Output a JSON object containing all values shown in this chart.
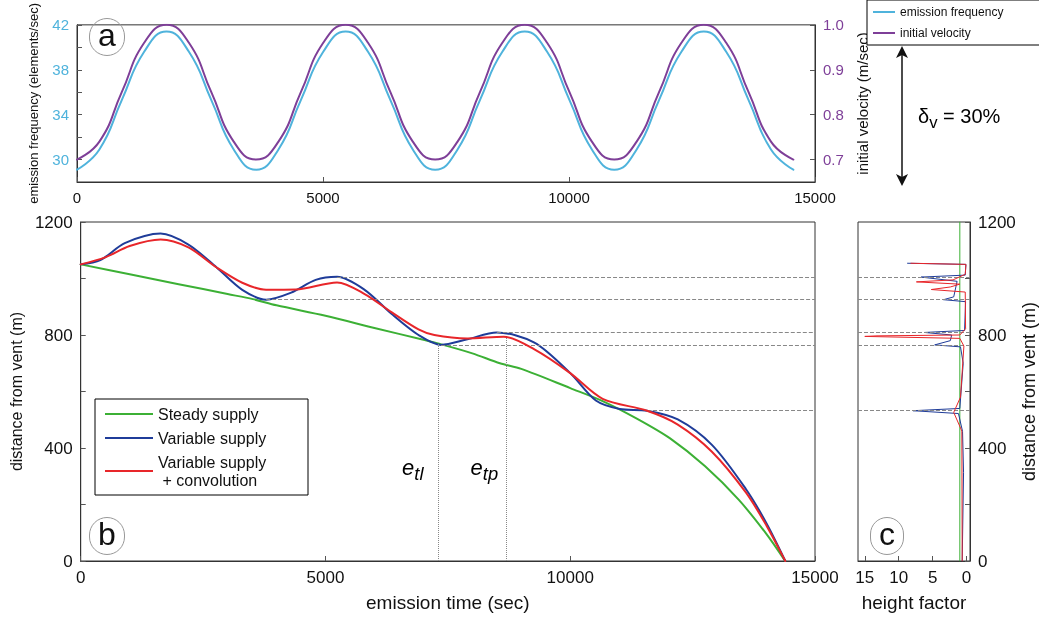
{
  "chart_data": [
    {
      "type": "line",
      "ylabel": "emission frequency (elements/sec)",
      "y2label": "initial velocity (m/sec)",
      "annotations": [
        "a",
        "δ$_{v}$ = 30%"
      ],
      "x": [
        0,
        455,
        910,
        1365,
        1820,
        2275,
        2730,
        3185,
        3640,
        4095,
        4550,
        5005,
        5460,
        5915,
        6370,
        6825,
        7280,
        7735,
        8190,
        8645,
        9100,
        9555,
        10010,
        10465,
        10920,
        11375,
        11830,
        12285,
        12740,
        13195,
        13650,
        14105,
        14560
      ],
      "series": [
        {
          "name": "emission frequency",
          "color": "#4fb3dc",
          "values": [
            29.1,
            30.9,
            35.3,
            39.6,
            41.4,
            39.6,
            35.3,
            30.9,
            29.1,
            30.9,
            35.3,
            39.6,
            41.4,
            39.6,
            35.3,
            30.9,
            29.1,
            30.9,
            35.3,
            39.6,
            41.4,
            39.6,
            35.3,
            30.9,
            29.1,
            30.9,
            35.3,
            39.6,
            41.4,
            39.6,
            35.3,
            30.9,
            29.1
          ]
        },
        {
          "name": "initial velocity",
          "color": "#7e3f98",
          "axis": "y2",
          "values": [
            0.7,
            0.74,
            0.85,
            0.96,
            1.0,
            0.96,
            0.85,
            0.74,
            0.7,
            0.74,
            0.85,
            0.96,
            1.0,
            0.96,
            0.85,
            0.74,
            0.7,
            0.74,
            0.85,
            0.96,
            1.0,
            0.96,
            0.85,
            0.74,
            0.7,
            0.74,
            0.85,
            0.96,
            1.0,
            0.96,
            0.85,
            0.74,
            0.7
          ]
        }
      ],
      "xlim": [
        0,
        15000
      ],
      "xticks": [
        0,
        5000,
        10000,
        15000
      ],
      "ylim": [
        28,
        42
      ],
      "yticks": [
        30,
        {
          "value": 32,
          "label": null
        },
        34,
        {
          "value": 36,
          "label": null
        },
        38,
        {
          "value": 40,
          "label": null
        },
        42
      ],
      "y2lim": [
        0.65,
        1.0
      ],
      "y2ticks": [
        0.7,
        0.8,
        0.9,
        {
          "value": 1.0,
          "label": "1.0"
        }
      ],
      "legend": "right"
    },
    {
      "type": "line",
      "xlabel": "emission time (sec)",
      "ylabel": "distance from vent (m)",
      "annotations": [
        "b"
      ],
      "series": [
        {
          "name": "Steady supply",
          "color": "#3cb035",
          "x": [
            0,
            1000,
            2000,
            3000,
            3516,
            4000,
            5000,
            6000,
            7000,
            7300,
            8000,
            8563,
            9000,
            10000,
            10650,
            11360,
            12040,
            12750,
            13440,
            14010,
            14390
          ],
          "values": [
            1050,
            1015,
            980,
            945,
            927,
            905,
            868,
            825,
            783,
            770,
            735,
            700,
            680,
            612,
            567,
            504,
            434,
            336,
            217,
            95,
            0
          ]
        },
        {
          "name": "Variable supply",
          "color": "#1f3c99",
          "x": [
            0,
            400,
            900,
            1631,
            2200,
            2777,
            3300,
            3787,
            4300,
            4800,
            5236,
            5800,
            6348,
            6900,
            7359,
            7900,
            8500,
            9268,
            10000,
            10523,
            11011,
            11569,
            12197,
            12894,
            13591,
            14010,
            14393
          ],
          "values": [
            1050,
            1065,
            1125,
            1159,
            1120,
            1039,
            960,
            925,
            950,
            995,
            1006,
            960,
            875,
            800,
            765,
            785,
            809,
            773,
            665,
            568,
            538,
            532,
            501,
            411,
            254,
            133,
            0
          ]
        },
        {
          "name": "Variable supply + convolution",
          "color": "#e8262a",
          "x": [
            0,
            500,
            1000,
            1631,
            2200,
            2777,
            3300,
            3787,
            4394,
            5236,
            5800,
            6348,
            6900,
            7224,
            7898,
            8639,
            9268,
            10000,
            10662,
            11569,
            12197,
            12894,
            13591,
            14010,
            14393
          ],
          "values": [
            1050,
            1075,
            1115,
            1138,
            1110,
            1039,
            985,
            960,
            961,
            986,
            945,
            881,
            820,
            800,
            788,
            794,
            749,
            665,
            574,
            532,
            483,
            387,
            242,
            125,
            0
          ]
        }
      ],
      "xlim": [
        0,
        15000
      ],
      "xticks": [
        0,
        5000,
        10000,
        15000
      ],
      "ylim": [
        0,
        1200
      ],
      "yticks": [
        0,
        {
          "value": 200,
          "label": null
        },
        400,
        {
          "value": 600,
          "label": null
        },
        800,
        {
          "value": 1000,
          "label": null
        },
        1200
      ],
      "ref_lines": [
        {
          "axis": "y",
          "value": 1006,
          "line_style": "dashed",
          "color": "#888888"
        },
        {
          "axis": "y",
          "value": 925,
          "line_style": "dashed",
          "color": "#888888"
        },
        {
          "axis": "y",
          "value": 809,
          "line_style": "dashed",
          "color": "#888888"
        },
        {
          "axis": "y",
          "value": 765,
          "line_style": "dashed",
          "color": "#888888"
        },
        {
          "axis": "y",
          "value": 532,
          "line_style": "dashed",
          "color": "#888888"
        },
        {
          "axis": "x",
          "value": 7300,
          "label": "e$_{tl}$",
          "line_style": "dotted",
          "color": "#888888"
        },
        {
          "axis": "x",
          "value": 8700,
          "label": "e$_{tp}$",
          "line_style": "dotted",
          "color": "#888888"
        }
      ],
      "legend": "bottom left"
    },
    {
      "type": "line",
      "xlabel": "height factor",
      "y2label": "distance from vent (m)",
      "annotations": [
        "c"
      ],
      "series": [
        {
          "color": "#3cb035",
          "axis": "y2",
          "x": [
            1,
            1
          ],
          "values": [
            0,
            1200
          ]
        },
        {
          "color": "#1f3c99",
          "axis": "y2",
          "x": [
            0.65,
            0.45,
            0.6,
            1.2,
            7.9,
            1.0,
            0.5,
            0.9,
            4.7,
            2.4,
            2.2,
            6.2,
            0.3,
            0.15,
            3.4,
            1.9,
            1.4,
            6.7,
            0.2,
            0.1,
            8.7
          ],
          "values": [
            0,
            314,
            459,
            522,
            532,
            540,
            700,
            758,
            765,
            780,
            800,
            809,
            816,
            918,
            925,
            935,
            990,
            1005,
            1012,
            1050,
            1054
          ]
        },
        {
          "color": "#e8262a",
          "axis": "y2",
          "x": [
            0.65,
            0.7,
            1.9,
            0.9,
            0.4,
            1.0,
            15,
            13.2,
            1.0,
            0.15,
            0.2,
            5.2,
            2.4,
            1.0,
            7.4,
            2.0,
            0.2,
            0.1,
            8.2
          ],
          "values": [
            0,
            460,
            526,
            580,
            761,
            788,
            795,
            797,
            800,
            822,
            952,
            961,
            970,
            980,
            988,
            995,
            1015,
            1050,
            1054
          ]
        }
      ],
      "xlim": [
        16,
        -0.5
      ],
      "xticks": [
        15,
        10,
        5,
        0
      ],
      "y2lim": [
        0,
        1200
      ],
      "y2ticks": [
        0,
        {
          "value": 200,
          "label": null
        },
        400,
        {
          "value": 600,
          "label": null
        },
        800,
        {
          "value": 1000,
          "label": null
        },
        1200
      ],
      "ref_lines": [
        {
          "axis": "y2",
          "value": 1006,
          "line_style": "dashed",
          "color": "#888888"
        },
        {
          "axis": "y2",
          "value": 925,
          "line_style": "dashed",
          "color": "#888888"
        },
        {
          "axis": "y2",
          "value": 809,
          "line_style": "dashed",
          "color": "#888888"
        },
        {
          "axis": "y2",
          "value": 765,
          "line_style": "dashed",
          "color": "#888888"
        },
        {
          "axis": "y2",
          "value": 532,
          "line_style": "dashed",
          "color": "#888888"
        }
      ]
    }
  ]
}
